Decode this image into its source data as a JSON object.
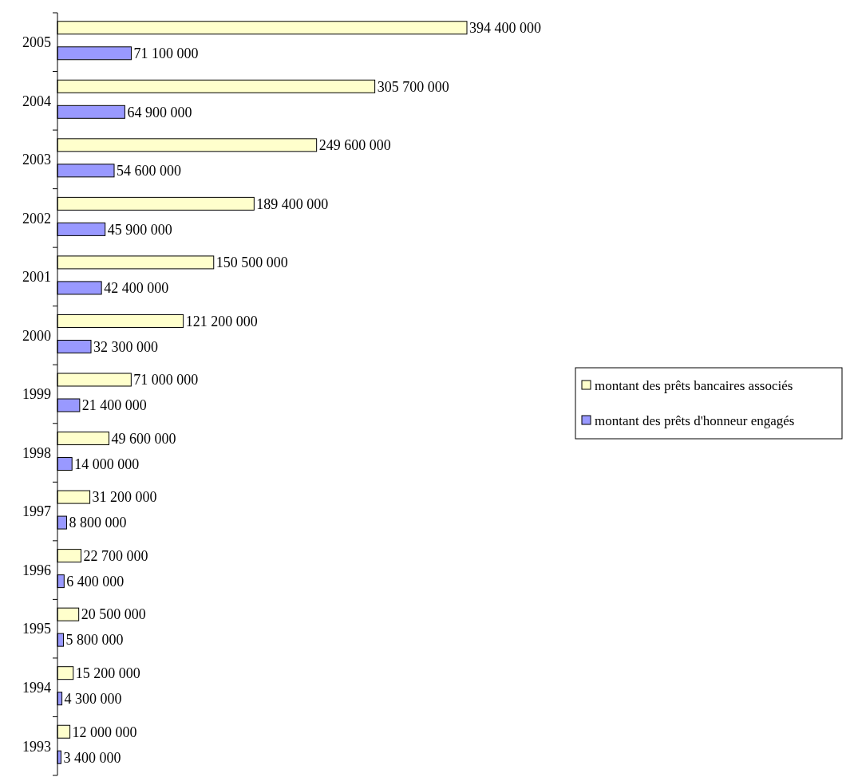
{
  "chart_data": {
    "type": "bar",
    "orientation": "horizontal",
    "categories": [
      "2005",
      "2004",
      "2003",
      "2002",
      "2001",
      "2000",
      "1999",
      "1998",
      "1997",
      "1996",
      "1995",
      "1994",
      "1993"
    ],
    "series": [
      {
        "name": "montant des prêts bancaires associés",
        "color": "#ffffcc",
        "values": [
          394400000,
          305700000,
          249600000,
          189400000,
          150500000,
          121200000,
          71000000,
          49600000,
          31200000,
          22700000,
          20500000,
          15200000,
          12000000
        ],
        "value_labels": [
          "394 400 000",
          "305 700 000",
          "249 600 000",
          "189 400 000",
          "150 500 000",
          "121 200 000",
          "71 000 000",
          "49 600 000",
          "31 200 000",
          "22 700 000",
          "20 500 000",
          "15 200 000",
          "12 000 000"
        ]
      },
      {
        "name": "montant des prêts d'honneur engagés",
        "color": "#9999ff",
        "values": [
          71100000,
          64900000,
          54600000,
          45900000,
          42400000,
          32300000,
          21400000,
          14000000,
          8800000,
          6400000,
          5800000,
          4300000,
          3400000
        ],
        "value_labels": [
          "71 100 000",
          "64 900 000",
          "54 600 000",
          "45 900 000",
          "42 400 000",
          "32 300 000",
          "21 400 000",
          "14 000 000",
          "8 800 000",
          "6 400 000",
          "5 800 000",
          "4 300 000",
          "3 400 000"
        ]
      }
    ],
    "tick_labels": "y",
    "legend": "right",
    "grid": false
  }
}
